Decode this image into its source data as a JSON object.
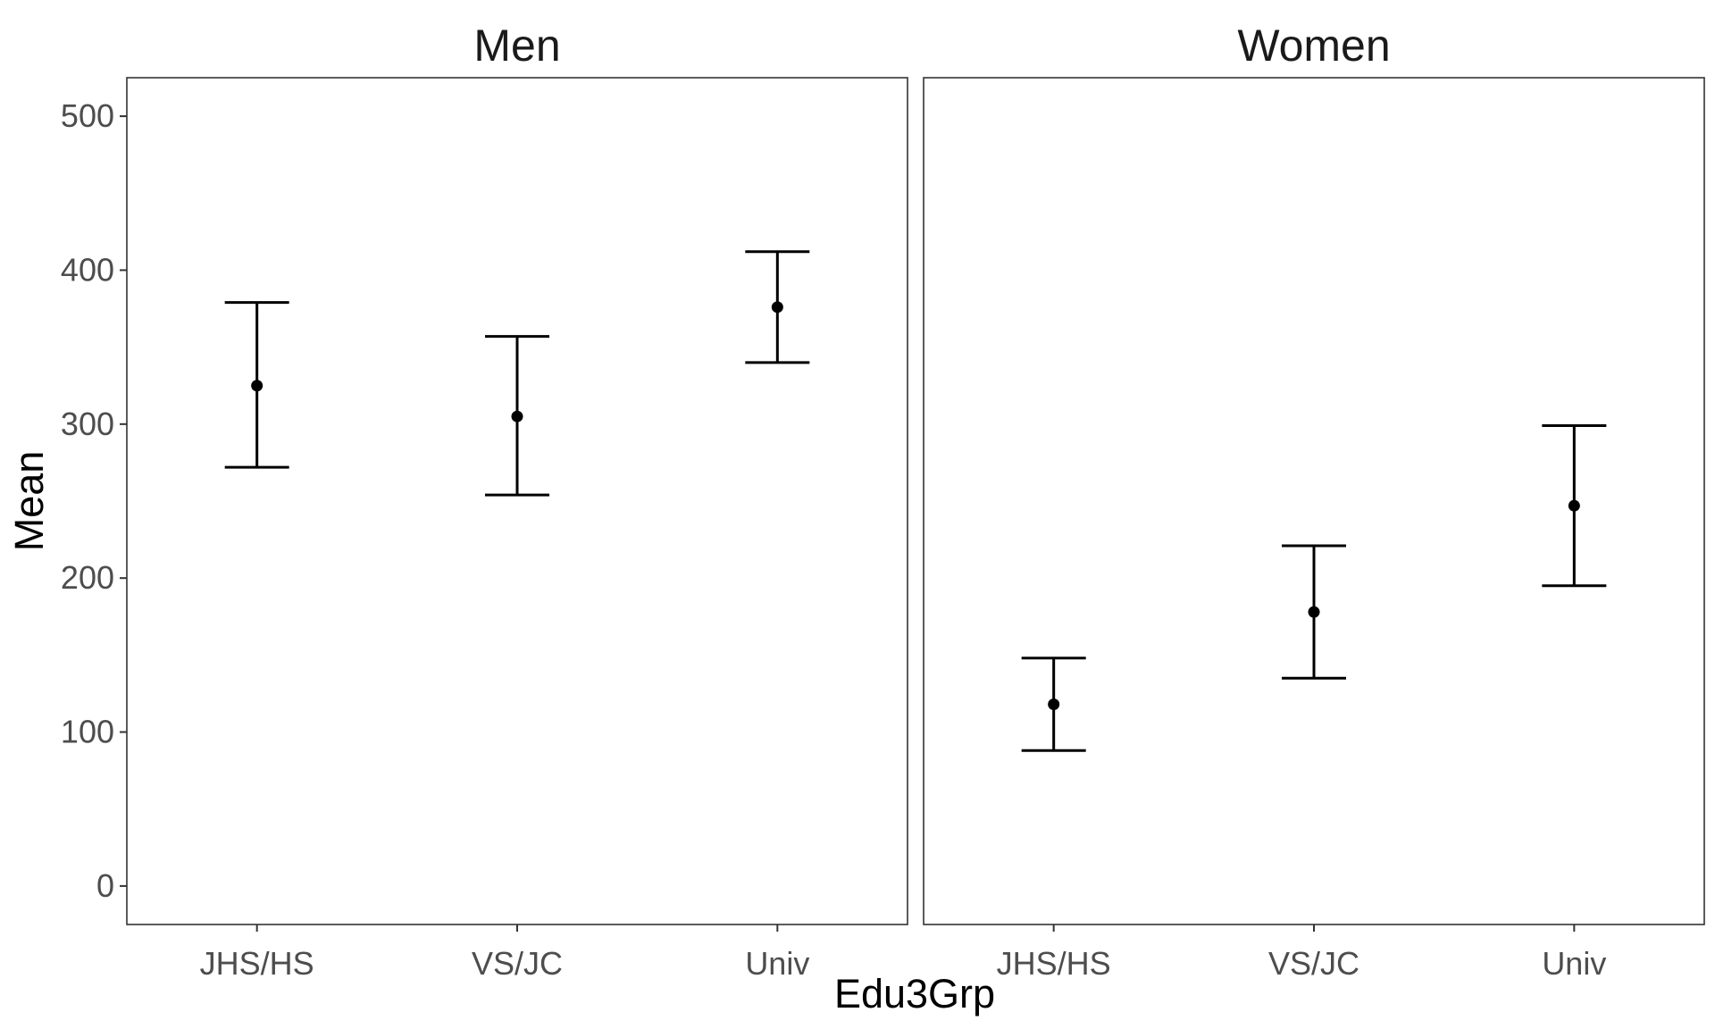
{
  "chart_data": {
    "type": "scatter",
    "subtype": "errorbar",
    "xlabel": "Edu3Grp",
    "ylabel": "Mean",
    "ylim": [
      -25,
      525
    ],
    "yticks": [
      0,
      100,
      200,
      300,
      400,
      500
    ],
    "yticklabels": [
      "0",
      "100",
      "200",
      "300",
      "400",
      "500"
    ],
    "categories": [
      "JHS/HS",
      "VS/JC",
      "Univ"
    ],
    "grid": false,
    "facets": [
      {
        "title": "Men",
        "points": [
          {
            "x": "JHS/HS",
            "mean": 325,
            "lower": 272,
            "upper": 379
          },
          {
            "x": "VS/JC",
            "mean": 305,
            "lower": 254,
            "upper": 357
          },
          {
            "x": "Univ",
            "mean": 376,
            "lower": 340,
            "upper": 412
          }
        ]
      },
      {
        "title": "Women",
        "points": [
          {
            "x": "JHS/HS",
            "mean": 118,
            "lower": 88,
            "upper": 148
          },
          {
            "x": "VS/JC",
            "mean": 178,
            "lower": 135,
            "upper": 221
          },
          {
            "x": "Univ",
            "mean": 247,
            "lower": 195,
            "upper": 299
          }
        ]
      }
    ]
  }
}
